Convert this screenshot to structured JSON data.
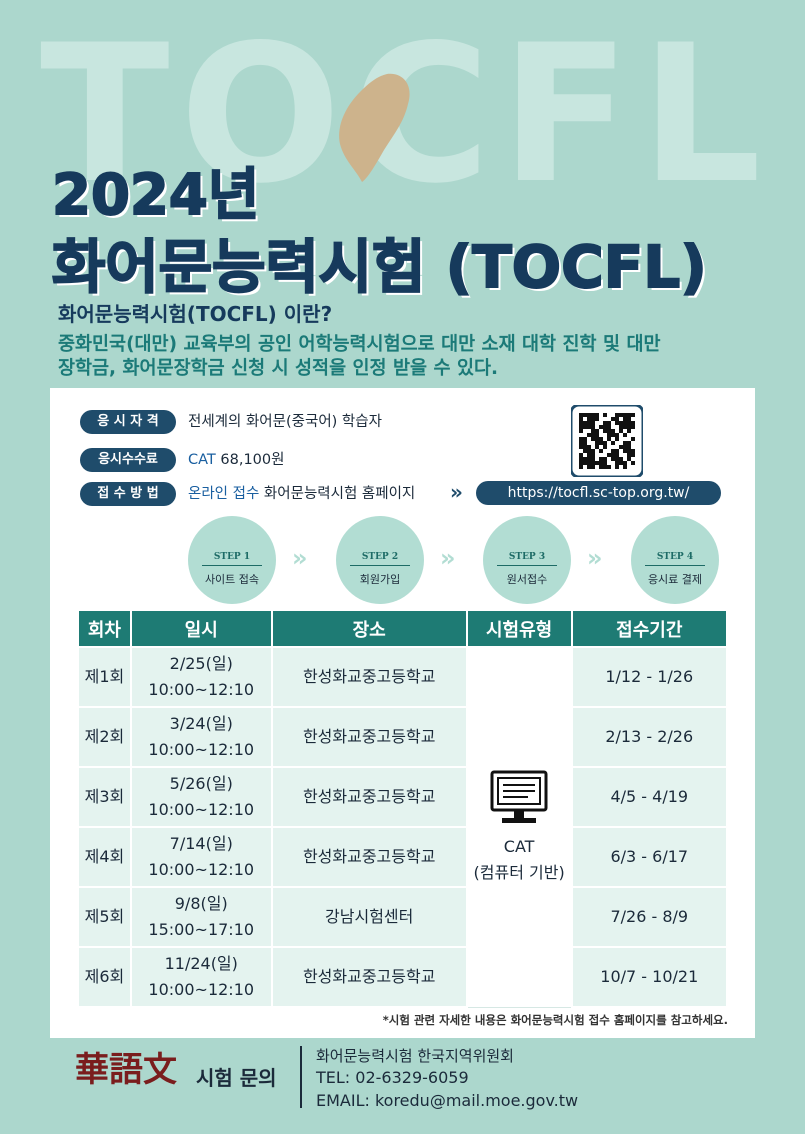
{
  "background_text": "TOCFL",
  "title": {
    "year": "2024년",
    "name": "화어문능력시험 (TOCFL)"
  },
  "intro": {
    "heading": "화어문능력시험(TOCFL) 이란?",
    "body_lines": [
      "중화민국(대만) 교육부의 공인 어학능력시험으로 대만 소재 대학 진학 및 대만",
      "장학금, 화어문장학금 신청 시 성적을 인정 받을 수 있다."
    ]
  },
  "info": [
    {
      "label": "응 시 자 격",
      "value": "전세계의 화어문(중국어) 학습자"
    },
    {
      "label": "응시수수료",
      "highlight": "CAT",
      "value": "68,100원"
    },
    {
      "label": "접 수 방 법",
      "highlight": "온라인 접수",
      "value": "화어문능력시험 홈페이지",
      "link": "https://tocfl.sc-top.org.tw/"
    }
  ],
  "steps": [
    {
      "step": "STEP 1",
      "label": "사이트 접속"
    },
    {
      "step": "STEP 2",
      "label": "회원가입"
    },
    {
      "step": "STEP 3",
      "label": "원서접수"
    },
    {
      "step": "STEP 4",
      "label": "응시료 결제"
    }
  ],
  "table": {
    "headers": [
      "회차",
      "일시",
      "장소",
      "시험유형",
      "접수기간"
    ],
    "rows": [
      [
        "제1회",
        "2/25(일)",
        "10:00~12:10",
        "한성화교중고등학교",
        "1/12 - 1/26"
      ],
      [
        "제2회",
        "3/24(일)",
        "10:00~12:10",
        "한성화교중고등학교",
        "2/13 - 2/26"
      ],
      [
        "제3회",
        "5/26(일)",
        "10:00~12:10",
        "한성화교중고등학교",
        "4/5 - 4/19"
      ],
      [
        "제4회",
        "7/14(일)",
        "10:00~12:10",
        "한성화교중고등학교",
        "6/3 - 6/17"
      ],
      [
        "제5회",
        "9/8(일)",
        "15:00~17:10",
        "강남시험센터",
        "7/26 - 8/9"
      ],
      [
        "제6회",
        "11/24(일)",
        "10:00~12:10",
        "한성화교중고등학교",
        "10/7 - 10/21"
      ]
    ],
    "exam_type": "CAT",
    "exam_type_note": "(컴퓨터 기반)"
  },
  "footnote": "*시험 관련 자세한 내용은 화어문능력시험 접수 홈페이지를 참고하세요.",
  "footer": {
    "logo": "華語文",
    "contact_label": "시험 문의",
    "org": "화어문능력시험 한국지역위원회",
    "tel": "TEL: 02-6329-6059",
    "email": "EMAIL: koredu@mail.moe.gov.tw"
  }
}
